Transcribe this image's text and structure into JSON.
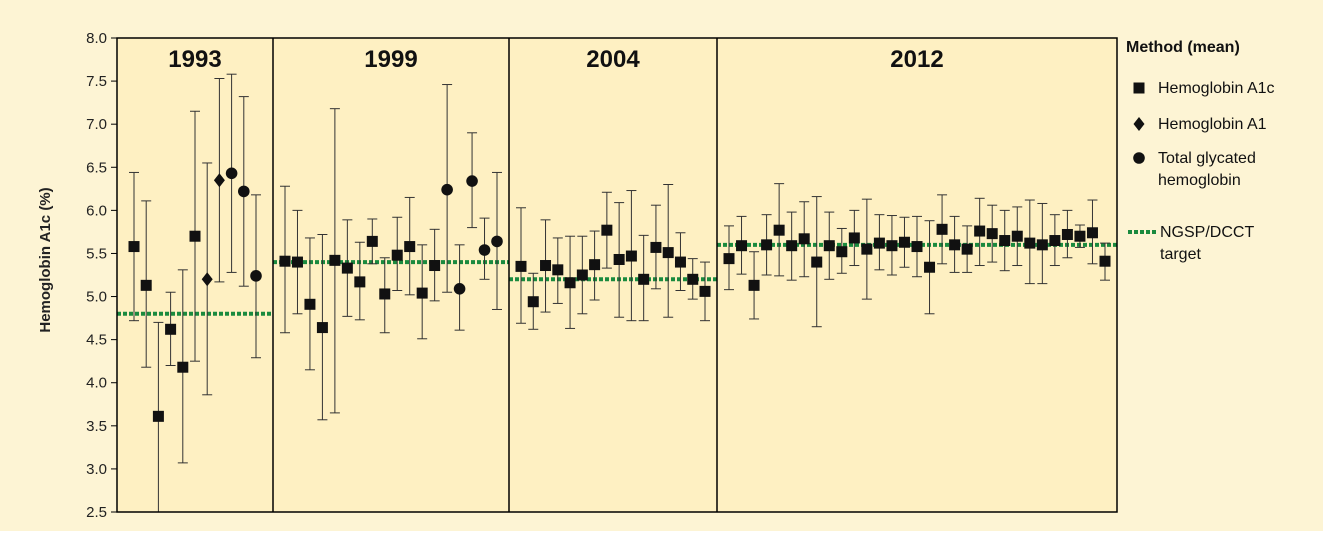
{
  "colors": {
    "background": "#fdf4d4",
    "plot_background": "#fef0c2",
    "marker": "#111111",
    "target_line": "#1a8a3e"
  },
  "chart_data": {
    "type": "scatter",
    "title": "",
    "xlabel": "",
    "ylabel": "Hemoglobin A1c (%)",
    "ylim": [
      2.5,
      8.0
    ],
    "yticks": [
      "2.5",
      "3.0",
      "3.5",
      "4.0",
      "4.5",
      "5.0",
      "5.5",
      "6.0",
      "6.5",
      "7.0",
      "7.5",
      "8.0"
    ],
    "grid": false,
    "legend": {
      "title": "Method (mean)",
      "placement": "right",
      "items": [
        {
          "marker": "square",
          "lines": [
            "Hemoglobin A1c"
          ]
        },
        {
          "marker": "diamond",
          "lines": [
            "Hemoglobin A1"
          ]
        },
        {
          "marker": "circle",
          "lines": [
            "Total glycated",
            "hemoglobin"
          ]
        },
        {
          "marker": "target-line",
          "lines": [
            "NGSP/DCCT",
            "target"
          ]
        }
      ]
    },
    "panels": [
      {
        "year": "1993",
        "target": 4.8,
        "points": [
          {
            "marker": "square",
            "mean": 5.58,
            "low": 4.72,
            "high": 6.44
          },
          {
            "marker": "square",
            "mean": 5.13,
            "low": 4.18,
            "high": 6.11
          },
          {
            "marker": "square",
            "mean": 3.61,
            "low": 2.5,
            "high": 4.7
          },
          {
            "marker": "square",
            "mean": 4.62,
            "low": 4.2,
            "high": 5.05
          },
          {
            "marker": "square",
            "mean": 4.18,
            "low": 3.07,
            "high": 5.31
          },
          {
            "marker": "square",
            "mean": 5.7,
            "low": 4.25,
            "high": 7.15
          },
          {
            "marker": "diamond",
            "mean": 5.2,
            "low": 3.86,
            "high": 6.55
          },
          {
            "marker": "diamond",
            "mean": 6.35,
            "low": 5.17,
            "high": 7.53
          },
          {
            "marker": "circle",
            "mean": 6.43,
            "low": 5.28,
            "high": 7.58
          },
          {
            "marker": "circle",
            "mean": 6.22,
            "low": 5.12,
            "high": 7.32
          },
          {
            "marker": "circle",
            "mean": 5.24,
            "low": 4.29,
            "high": 6.18
          }
        ]
      },
      {
        "year": "1999",
        "target": 5.4,
        "points": [
          {
            "marker": "square",
            "mean": 5.41,
            "low": 4.58,
            "high": 6.28
          },
          {
            "marker": "square",
            "mean": 5.4,
            "low": 4.8,
            "high": 6.0
          },
          {
            "marker": "square",
            "mean": 4.91,
            "low": 4.15,
            "high": 5.68
          },
          {
            "marker": "square",
            "mean": 4.64,
            "low": 3.57,
            "high": 5.72
          },
          {
            "marker": "square",
            "mean": 5.42,
            "low": 3.65,
            "high": 7.18
          },
          {
            "marker": "square",
            "mean": 5.33,
            "low": 4.77,
            "high": 5.89
          },
          {
            "marker": "square",
            "mean": 5.17,
            "low": 4.73,
            "high": 5.63
          },
          {
            "marker": "square",
            "mean": 5.64,
            "low": 5.38,
            "high": 5.9
          },
          {
            "marker": "square",
            "mean": 5.03,
            "low": 4.58,
            "high": 5.45
          },
          {
            "marker": "square",
            "mean": 5.48,
            "low": 5.07,
            "high": 5.92
          },
          {
            "marker": "square",
            "mean": 5.58,
            "low": 5.02,
            "high": 6.15
          },
          {
            "marker": "square",
            "mean": 5.04,
            "low": 4.51,
            "high": 5.6
          },
          {
            "marker": "square",
            "mean": 5.36,
            "low": 4.95,
            "high": 5.78
          },
          {
            "marker": "circle",
            "mean": 6.24,
            "low": 5.05,
            "high": 7.46
          },
          {
            "marker": "circle",
            "mean": 5.09,
            "low": 4.61,
            "high": 5.6
          },
          {
            "marker": "circle",
            "mean": 6.34,
            "low": 5.8,
            "high": 6.9
          },
          {
            "marker": "circle",
            "mean": 5.54,
            "low": 5.2,
            "high": 5.91
          },
          {
            "marker": "circle",
            "mean": 5.64,
            "low": 4.85,
            "high": 6.44
          }
        ]
      },
      {
        "year": "2004",
        "target": 5.2,
        "points": [
          {
            "marker": "square",
            "mean": 5.35,
            "low": 4.69,
            "high": 6.03
          },
          {
            "marker": "square",
            "mean": 4.94,
            "low": 4.62,
            "high": 5.27
          },
          {
            "marker": "square",
            "mean": 5.36,
            "low": 4.82,
            "high": 5.89
          },
          {
            "marker": "square",
            "mean": 5.31,
            "low": 4.92,
            "high": 5.68
          },
          {
            "marker": "square",
            "mean": 5.16,
            "low": 4.63,
            "high": 5.7
          },
          {
            "marker": "square",
            "mean": 5.25,
            "low": 4.8,
            "high": 5.7
          },
          {
            "marker": "square",
            "mean": 5.37,
            "low": 4.96,
            "high": 5.76
          },
          {
            "marker": "square",
            "mean": 5.77,
            "low": 5.33,
            "high": 6.21
          },
          {
            "marker": "square",
            "mean": 5.43,
            "low": 4.76,
            "high": 6.09
          },
          {
            "marker": "square",
            "mean": 5.47,
            "low": 4.72,
            "high": 6.23
          },
          {
            "marker": "square",
            "mean": 5.2,
            "low": 4.72,
            "high": 5.71
          },
          {
            "marker": "square",
            "mean": 5.57,
            "low": 5.09,
            "high": 6.06
          },
          {
            "marker": "square",
            "mean": 5.51,
            "low": 4.76,
            "high": 6.3
          },
          {
            "marker": "square",
            "mean": 5.4,
            "low": 5.07,
            "high": 5.74
          },
          {
            "marker": "square",
            "mean": 5.2,
            "low": 4.97,
            "high": 5.44
          },
          {
            "marker": "square",
            "mean": 5.06,
            "low": 4.72,
            "high": 5.4
          }
        ]
      },
      {
        "year": "2012",
        "target": 5.6,
        "points": [
          {
            "marker": "square",
            "mean": 5.44,
            "low": 5.08,
            "high": 5.82
          },
          {
            "marker": "square",
            "mean": 5.59,
            "low": 5.26,
            "high": 5.93
          },
          {
            "marker": "square",
            "mean": 5.13,
            "low": 4.74,
            "high": 5.52
          },
          {
            "marker": "square",
            "mean": 5.6,
            "low": 5.25,
            "high": 5.95
          },
          {
            "marker": "square",
            "mean": 5.77,
            "low": 5.24,
            "high": 6.31
          },
          {
            "marker": "square",
            "mean": 5.59,
            "low": 5.19,
            "high": 5.98
          },
          {
            "marker": "square",
            "mean": 5.67,
            "low": 5.23,
            "high": 6.1
          },
          {
            "marker": "square",
            "mean": 5.4,
            "low": 4.65,
            "high": 6.16
          },
          {
            "marker": "square",
            "mean": 5.59,
            "low": 5.2,
            "high": 5.98
          },
          {
            "marker": "square",
            "mean": 5.52,
            "low": 5.27,
            "high": 5.79
          },
          {
            "marker": "square",
            "mean": 5.68,
            "low": 5.36,
            "high": 6.0
          },
          {
            "marker": "square",
            "mean": 5.55,
            "low": 4.97,
            "high": 6.13
          },
          {
            "marker": "square",
            "mean": 5.62,
            "low": 5.31,
            "high": 5.95
          },
          {
            "marker": "square",
            "mean": 5.59,
            "low": 5.25,
            "high": 5.94
          },
          {
            "marker": "square",
            "mean": 5.63,
            "low": 5.34,
            "high": 5.92
          },
          {
            "marker": "square",
            "mean": 5.58,
            "low": 5.23,
            "high": 5.93
          },
          {
            "marker": "square",
            "mean": 5.34,
            "low": 4.8,
            "high": 5.88
          },
          {
            "marker": "square",
            "mean": 5.78,
            "low": 5.38,
            "high": 6.18
          },
          {
            "marker": "square",
            "mean": 5.6,
            "low": 5.28,
            "high": 5.93
          },
          {
            "marker": "square",
            "mean": 5.55,
            "low": 5.28,
            "high": 5.82
          },
          {
            "marker": "square",
            "mean": 5.76,
            "low": 5.36,
            "high": 6.14
          },
          {
            "marker": "square",
            "mean": 5.73,
            "low": 5.4,
            "high": 6.06
          },
          {
            "marker": "square",
            "mean": 5.65,
            "low": 5.3,
            "high": 6.0
          },
          {
            "marker": "square",
            "mean": 5.7,
            "low": 5.36,
            "high": 6.04
          },
          {
            "marker": "square",
            "mean": 5.62,
            "low": 5.15,
            "high": 6.12
          },
          {
            "marker": "square",
            "mean": 5.6,
            "low": 5.15,
            "high": 6.08
          },
          {
            "marker": "square",
            "mean": 5.65,
            "low": 5.36,
            "high": 5.95
          },
          {
            "marker": "square",
            "mean": 5.72,
            "low": 5.45,
            "high": 6.0
          },
          {
            "marker": "square",
            "mean": 5.7,
            "low": 5.57,
            "high": 5.83
          },
          {
            "marker": "square",
            "mean": 5.74,
            "low": 5.38,
            "high": 6.12
          },
          {
            "marker": "square",
            "mean": 5.41,
            "low": 5.19,
            "high": 5.62
          }
        ]
      }
    ]
  }
}
